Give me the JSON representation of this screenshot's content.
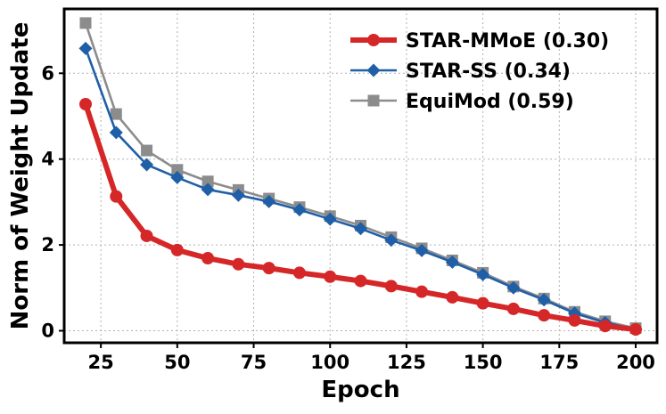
{
  "chart_data": {
    "type": "line",
    "title": "",
    "xlabel": "Epoch",
    "ylabel": "Norm of Weight Update",
    "xlim": [
      13,
      207
    ],
    "ylim": [
      -0.28,
      7.5
    ],
    "xticks": [
      25,
      50,
      75,
      100,
      125,
      150,
      175,
      200
    ],
    "yticks": [
      0,
      2,
      4,
      6
    ],
    "grid": true,
    "legend_position": "top-right",
    "x": [
      20,
      30,
      40,
      50,
      60,
      70,
      80,
      90,
      100,
      110,
      120,
      130,
      140,
      150,
      160,
      170,
      180,
      190,
      200
    ],
    "series": [
      {
        "name": "STAR-MMoE (0.30)",
        "color": "#d62728",
        "marker": "circle",
        "values": [
          5.28,
          3.13,
          2.21,
          1.88,
          1.69,
          1.55,
          1.46,
          1.35,
          1.26,
          1.16,
          1.04,
          0.91,
          0.78,
          0.64,
          0.51,
          0.36,
          0.24,
          0.11,
          0.03
        ]
      },
      {
        "name": "STAR-SS (0.34)",
        "color": "#1f5fa8",
        "marker": "diamond",
        "values": [
          6.58,
          4.62,
          3.87,
          3.57,
          3.29,
          3.16,
          3.01,
          2.82,
          2.6,
          2.38,
          2.11,
          1.87,
          1.6,
          1.31,
          1.0,
          0.72,
          0.41,
          0.19,
          0.03
        ]
      },
      {
        "name": "EquiMod (0.59)",
        "color": "#8c8c8c",
        "marker": "square",
        "values": [
          7.17,
          5.05,
          4.2,
          3.75,
          3.48,
          3.28,
          3.08,
          2.88,
          2.67,
          2.45,
          2.18,
          1.92,
          1.64,
          1.35,
          1.03,
          0.75,
          0.44,
          0.22,
          0.06
        ]
      }
    ]
  }
}
